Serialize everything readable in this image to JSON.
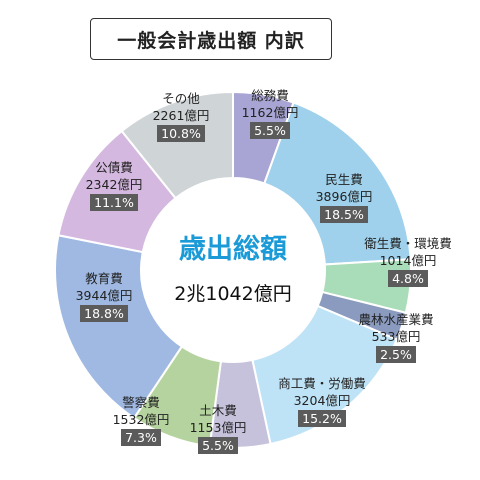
{
  "title": "一般会計歳出額 内訳",
  "chart_data": {
    "type": "pie",
    "title": "一般会計歳出額 内訳",
    "center_title": "歳出総額",
    "center_total": "2兆1042億円",
    "unit": "億円",
    "slices": [
      {
        "name": "総務費",
        "value": 1162,
        "value_label": "1162億円",
        "percent": 5.5,
        "percent_label": "5.5%",
        "color": "#a8a5d4"
      },
      {
        "name": "民生費",
        "value": 3896,
        "value_label": "3896億円",
        "percent": 18.5,
        "percent_label": "18.5%",
        "color": "#9fd1ec"
      },
      {
        "name": "衛生費・環境費",
        "value": 1014,
        "value_label": "1014億円",
        "percent": 4.8,
        "percent_label": "4.8%",
        "color": "#a9dcb8"
      },
      {
        "name": "農林水産業費",
        "value": 533,
        "value_label": "533億円",
        "percent": 2.5,
        "percent_label": "2.5%",
        "color": "#8a9bbf"
      },
      {
        "name": "商工費・労働費",
        "value": 3204,
        "value_label": "3204億円",
        "percent": 15.2,
        "percent_label": "15.2%",
        "color": "#bfe3f6"
      },
      {
        "name": "土木費",
        "value": 1153,
        "value_label": "1153億円",
        "percent": 5.5,
        "percent_label": "5.5%",
        "color": "#c7c2dc"
      },
      {
        "name": "警察費",
        "value": 1532,
        "value_label": "1532億円",
        "percent": 7.3,
        "percent_label": "7.3%",
        "color": "#b5d39e"
      },
      {
        "name": "教育費",
        "value": 3944,
        "value_label": "3944億円",
        "percent": 18.8,
        "percent_label": "18.8%",
        "color": "#9fb9e3"
      },
      {
        "name": "公債費",
        "value": 2342,
        "value_label": "2342億円",
        "percent": 11.1,
        "percent_label": "11.1%",
        "color": "#d5b8e0"
      },
      {
        "name": "その他",
        "value": 2261,
        "value_label": "2261億円",
        "percent": 10.8,
        "percent_label": "10.8%",
        "color": "#cfd4d6"
      }
    ]
  }
}
